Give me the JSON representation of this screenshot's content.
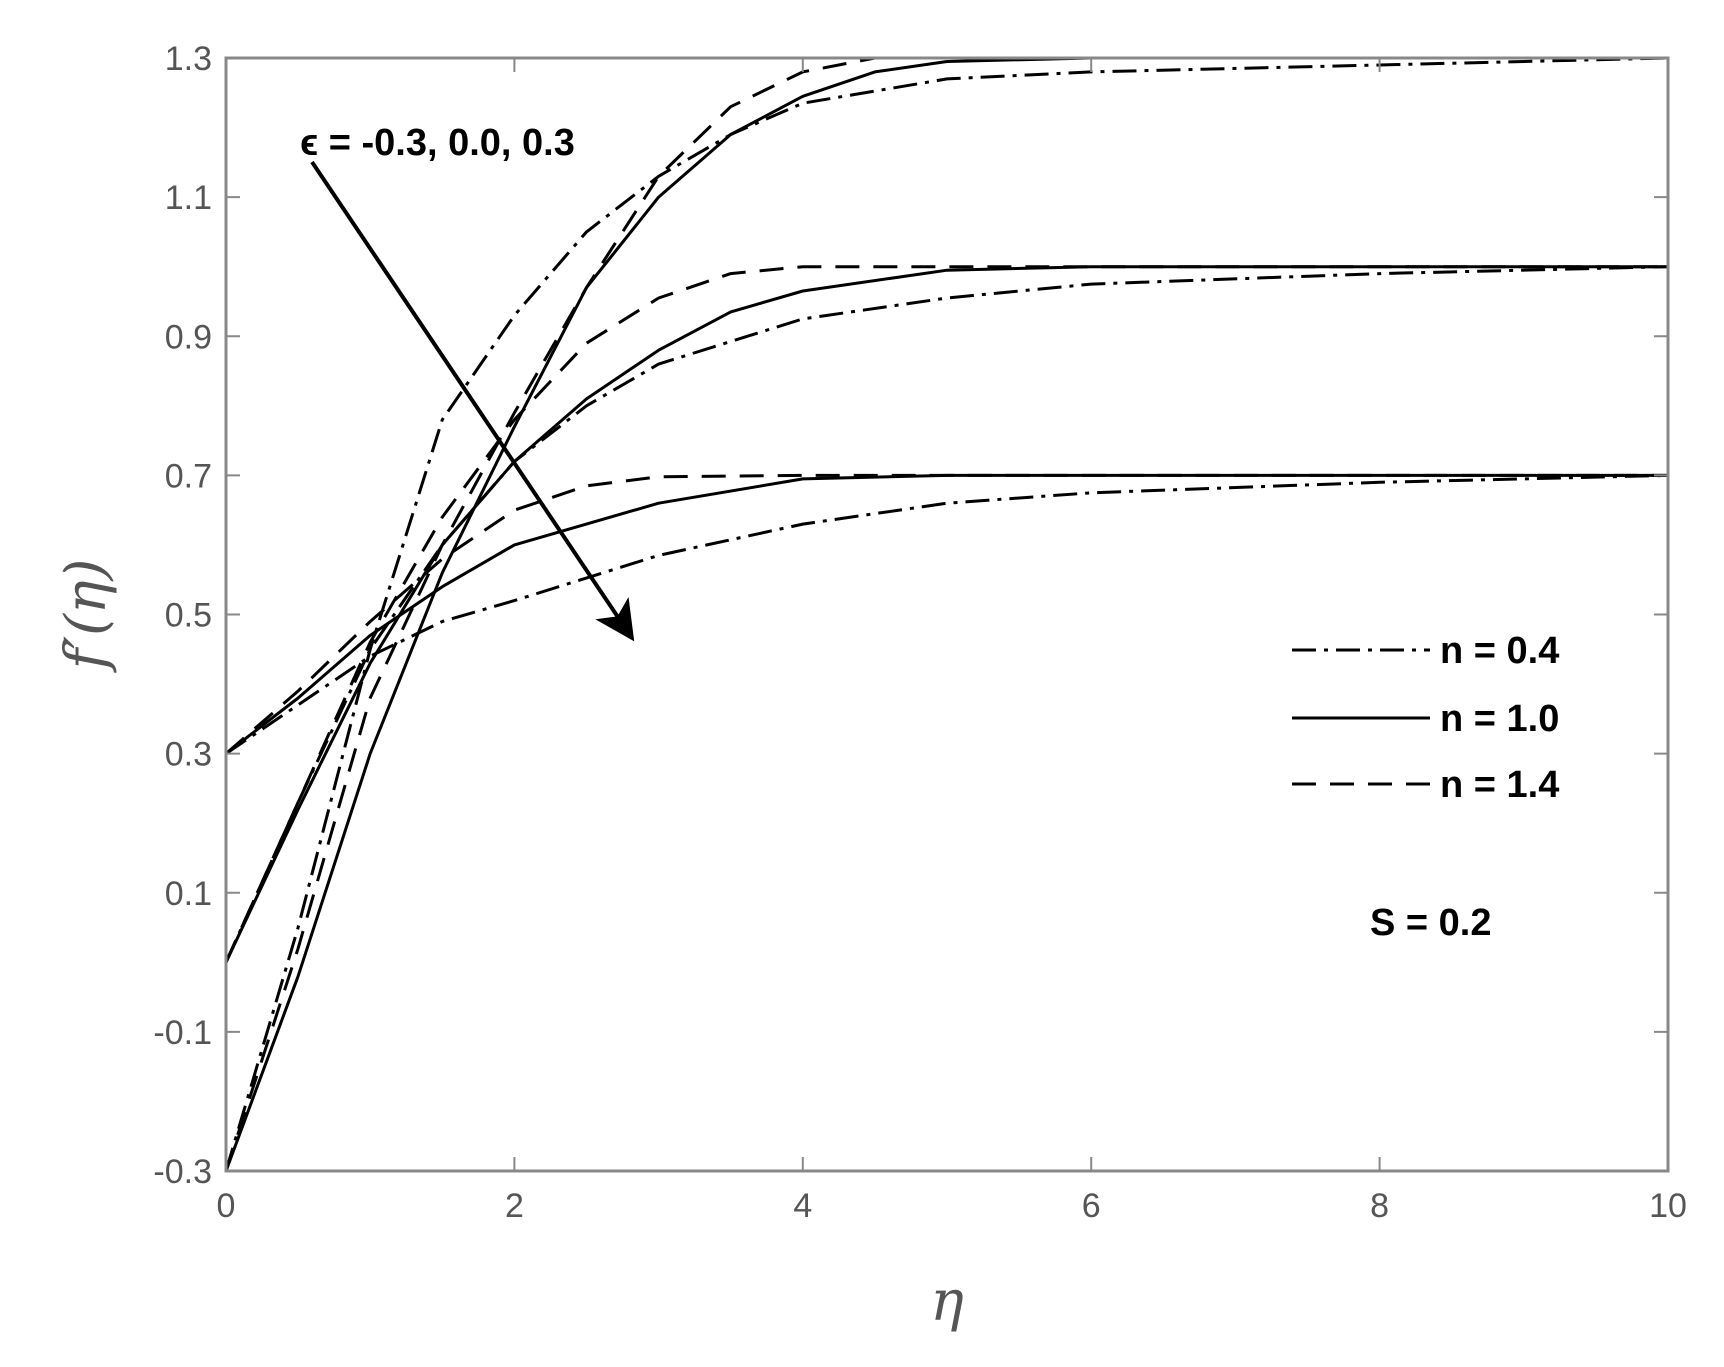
{
  "chart_data": {
    "type": "line",
    "title": "",
    "xlabel": "η",
    "ylabel": "f′(η)",
    "xlim": [
      0,
      10
    ],
    "ylim": [
      -0.3,
      1.3
    ],
    "xticks": [
      "0",
      "2",
      "4",
      "6",
      "8",
      "10"
    ],
    "yticks": [
      "-0.3",
      "-0.1",
      "0.1",
      "0.3",
      "0.5",
      "0.7",
      "0.9",
      "1.1",
      "1.3"
    ],
    "grid": false,
    "legend_position": "right",
    "legend": [
      {
        "label": "n = 0.4",
        "style": "dashdot"
      },
      {
        "label": "n = 1.0",
        "style": "solid"
      },
      {
        "label": "n = 1.4",
        "style": "dashed"
      }
    ],
    "annotations": {
      "param_text": "ϵ = -0.3, 0.0, 0.3",
      "param_arrow_dir": "down-right",
      "s_text": "S = 0.2"
    },
    "colors": {
      "line": "#000000",
      "axis": "#888888",
      "text": "#555555"
    },
    "series": [
      {
        "style": "dashdot",
        "x": [
          0,
          0.5,
          1,
          1.5,
          2,
          3,
          4,
          5,
          6,
          8,
          10
        ],
        "y": [
          0.3,
          0.37,
          0.44,
          0.49,
          0.52,
          0.585,
          0.63,
          0.66,
          0.675,
          0.69,
          0.7
        ]
      },
      {
        "style": "solid",
        "x": [
          0,
          0.5,
          1,
          1.5,
          2,
          3,
          4,
          5,
          6,
          8,
          10
        ],
        "y": [
          0.3,
          0.38,
          0.47,
          0.54,
          0.6,
          0.66,
          0.695,
          0.7,
          0.7,
          0.7,
          0.7
        ]
      },
      {
        "style": "dashed",
        "x": [
          0,
          0.5,
          1,
          1.5,
          2,
          2.5,
          3,
          4,
          6,
          8,
          10
        ],
        "y": [
          0.3,
          0.39,
          0.49,
          0.58,
          0.65,
          0.685,
          0.698,
          0.7,
          0.7,
          0.7,
          0.7
        ]
      },
      {
        "style": "dashdot",
        "x": [
          0,
          0.5,
          1,
          1.5,
          2,
          2.5,
          3,
          4,
          5,
          6,
          8,
          10
        ],
        "y": [
          0.0,
          0.23,
          0.45,
          0.6,
          0.72,
          0.8,
          0.86,
          0.925,
          0.955,
          0.975,
          0.99,
          1.0
        ]
      },
      {
        "style": "solid",
        "x": [
          0,
          0.5,
          1,
          1.5,
          2,
          2.5,
          3,
          3.5,
          4,
          5,
          6,
          8,
          10
        ],
        "y": [
          0.0,
          0.22,
          0.43,
          0.6,
          0.72,
          0.81,
          0.88,
          0.935,
          0.965,
          0.995,
          1.0,
          1.0,
          1.0
        ]
      },
      {
        "style": "dashed",
        "x": [
          0,
          0.5,
          1,
          1.5,
          2,
          2.5,
          3,
          3.5,
          4,
          6,
          8,
          10
        ],
        "y": [
          0.0,
          0.23,
          0.46,
          0.64,
          0.78,
          0.89,
          0.955,
          0.99,
          1.0,
          1.0,
          1.0,
          1.0
        ]
      },
      {
        "style": "dashdot",
        "x": [
          0,
          0.5,
          1,
          1.5,
          2,
          2.5,
          3,
          3.5,
          4,
          5,
          6,
          8,
          10
        ],
        "y": [
          -0.3,
          0.05,
          0.45,
          0.78,
          0.93,
          1.05,
          1.13,
          1.19,
          1.235,
          1.27,
          1.28,
          1.29,
          1.3
        ]
      },
      {
        "style": "solid",
        "x": [
          0,
          0.5,
          1,
          1.5,
          2,
          2.5,
          3,
          3.5,
          4,
          4.5,
          5,
          6,
          8,
          10
        ],
        "y": [
          -0.3,
          -0.02,
          0.3,
          0.56,
          0.77,
          0.97,
          1.1,
          1.19,
          1.245,
          1.28,
          1.295,
          1.3,
          1.3,
          1.3
        ]
      },
      {
        "style": "dashed",
        "x": [
          0,
          0.5,
          1,
          1.5,
          2,
          2.5,
          3,
          3.5,
          4,
          4.5,
          6,
          8,
          10
        ],
        "y": [
          -0.3,
          0.02,
          0.38,
          0.6,
          0.79,
          0.97,
          1.13,
          1.23,
          1.28,
          1.3,
          1.3,
          1.3,
          1.3
        ]
      }
    ]
  }
}
